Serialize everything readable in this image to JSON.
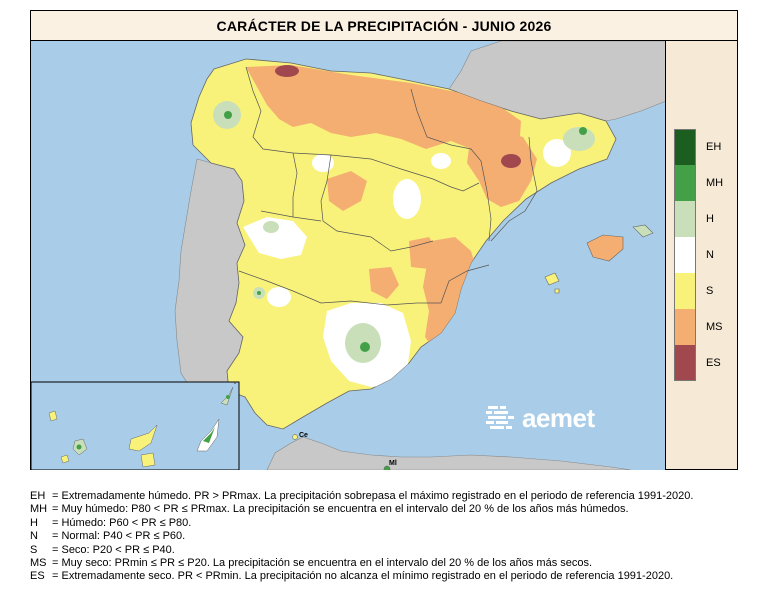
{
  "title": "CARÁCTER DE LA PRECIPITACIÓN - JUNIO 2026",
  "colors": {
    "EH": "#1b5e20",
    "MH": "#43a047",
    "H": "#c8dfba",
    "N": "#ffffff",
    "S": "#f8f27a",
    "MS": "#f5ae72",
    "ES": "#a1484e",
    "sea": "#a9cde8",
    "foreign": "#c8c8c8",
    "border": "#7a7a7a"
  },
  "legend": [
    {
      "code": "EH",
      "color": "#1b5e20"
    },
    {
      "code": "MH",
      "color": "#43a047"
    },
    {
      "code": "H",
      "color": "#c8dfba"
    },
    {
      "code": "N",
      "color": "#ffffff"
    },
    {
      "code": "S",
      "color": "#f8f27a"
    },
    {
      "code": "MS",
      "color": "#f5ae72"
    },
    {
      "code": "ES",
      "color": "#a1484e"
    }
  ],
  "map_labels": {
    "ceuta": "Ce",
    "melilla": "Ml"
  },
  "logo": {
    "text": "aemet",
    "icon": "aemet-logo-icon"
  },
  "notes": [
    {
      "code": "EH",
      "text": "= Extremadamente húmedo. PR > PRmax. La precipitación sobrepasa el máximo registrado en el periodo de referencia 1991-2020."
    },
    {
      "code": "MH",
      "text": "= Muy húmedo: P80 < PR ≤ PRmax. La precipitación se encuentra en el intervalo del 20 % de los años más húmedos."
    },
    {
      "code": "H",
      "text": "= Húmedo: P60 < PR ≤ P80."
    },
    {
      "code": "N",
      "text": "= Normal: P40 < PR ≤ P60."
    },
    {
      "code": "S",
      "text": "= Seco: P20 < PR ≤ P40."
    },
    {
      "code": "MS",
      "text": "= Muy seco: PRmin ≤ PR ≤ P20. La precipitación se encuentra en el intervalo del 20 % de los años más secos."
    },
    {
      "code": "ES",
      "text": "= Extremadamente seco. PR < PRmin. La precipitación no alcanza el mínimo registrado en el periodo de referencia 1991-2020."
    }
  ]
}
